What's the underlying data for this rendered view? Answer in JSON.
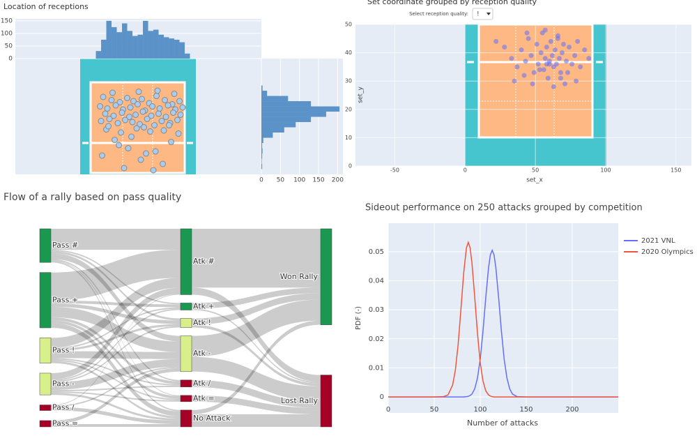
{
  "chart_data": [
    {
      "type": "scatter-hist",
      "title": "Location of receptions",
      "color": "#a9cbee",
      "x": [
        1.2,
        2.0,
        2.8,
        3.5,
        4.1,
        4.9,
        5.6,
        6.3,
        7.1,
        7.8,
        8.5,
        0.9,
        1.6,
        2.4,
        3.1,
        3.8,
        4.5,
        5.2,
        5.9,
        6.6,
        7.4,
        8.1,
        8.8,
        1.4,
        2.2,
        3.0,
        3.7,
        4.3,
        5.0,
        5.8,
        6.5,
        7.2,
        7.9,
        8.6,
        1.0,
        1.8,
        2.6,
        3.3,
        4.0,
        4.7,
        5.4,
        6.1,
        6.8,
        7.6,
        8.3,
        1.5,
        2.9,
        4.4,
        5.7,
        7.0,
        8.4,
        2.3,
        3.6,
        6.2,
        7.7,
        1.1,
        4.8,
        6.9,
        3.2,
        5.3,
        2.1,
        4.6,
        6.4,
        8.0,
        1.7,
        5.1,
        7.5,
        3.9,
        2.7,
        6.0
      ],
      "y": [
        4.4,
        4.1,
        3.9,
        4.3,
        4.0,
        4.2,
        3.8,
        4.5,
        4.1,
        3.7,
        4.0,
        3.5,
        3.3,
        3.6,
        3.2,
        3.4,
        3.7,
        3.1,
        3.5,
        3.3,
        3.6,
        3.2,
        3.4,
        2.8,
        2.6,
        2.9,
        2.5,
        2.7,
        3.0,
        2.6,
        2.8,
        2.5,
        2.9,
        2.7,
        2.1,
        2.3,
        1.9,
        2.2,
        2.0,
        1.8,
        2.3,
        1.7,
        2.1,
        1.9,
        2.2,
        1.3,
        1.0,
        1.4,
        1.1,
        1.2,
        0.9,
        0.3,
        -0.5,
        -0.8,
        0.1,
        -1.2,
        -1.6,
        -2.0,
        -2.4,
        -1.0,
        4.8,
        4.9,
        5.0,
        4.7,
        1.6,
        1.5,
        1.7,
        0.6,
        -0.2,
        -2.6
      ],
      "xlim": [
        -7.2,
        16.33
      ],
      "ylim": [
        -3,
        8.07
      ],
      "top_hist": {
        "color": "#5b93c9",
        "bins": [
          0.5,
          1,
          1.5,
          2,
          2.5,
          3,
          3.5,
          4,
          4.5,
          5,
          5.5,
          6,
          6.5,
          7,
          7.5,
          8,
          8.5,
          9,
          9.5
        ],
        "counts": [
          30,
          75,
          150,
          125,
          105,
          140,
          110,
          90,
          95,
          150,
          110,
          115,
          95,
          85,
          80,
          75,
          65,
          20
        ],
        "ylim": [
          0,
          158
        ],
        "yticks": [
          0,
          50,
          100,
          150
        ]
      },
      "side_hist": {
        "color": "#5b93c9",
        "bins": [
          -2.5,
          -2,
          -1.5,
          -1,
          -0.5,
          0,
          0.5,
          1,
          1.5,
          2,
          2.5,
          3,
          3.5,
          4,
          4.5,
          5,
          5.5
        ],
        "counts": [
          2,
          1,
          2,
          3,
          2,
          5,
          30,
          60,
          90,
          130,
          170,
          205,
          130,
          70,
          15,
          3
        ],
        "xlim": [
          0,
          214
        ],
        "xticks": [
          0,
          50,
          100,
          150,
          200
        ]
      }
    },
    {
      "type": "scatter",
      "title": "Set coordinate grouped by reception quality",
      "x_label": "set_x",
      "y_label": "set_y",
      "dropdown": {
        "label": "Select reception quality:",
        "value": "!"
      },
      "color": "rgba(99,110,250,0.55)",
      "x": [
        22,
        28,
        33,
        37,
        40,
        43,
        45,
        47,
        49,
        51,
        52,
        54,
        55,
        56,
        57,
        58,
        59,
        60,
        61,
        62,
        63,
        64,
        65,
        66,
        67,
        68,
        69,
        70,
        72,
        74,
        76,
        78,
        80,
        82,
        85,
        88,
        35,
        42,
        48,
        53,
        58,
        63,
        68,
        73,
        79,
        44,
        57,
        66,
        71,
        60
      ],
      "y": [
        44,
        42,
        38,
        35,
        41,
        37,
        45,
        39,
        33,
        43,
        36,
        40,
        47,
        34,
        38,
        42,
        31,
        37,
        44,
        39,
        35,
        41,
        36,
        46,
        38,
        33,
        40,
        43,
        37,
        42,
        36,
        39,
        44,
        35,
        41,
        38,
        30,
        32,
        29,
        34,
        36,
        28,
        31,
        33,
        30,
        47,
        48,
        45,
        29,
        36
      ],
      "xlim": [
        -78,
        161
      ],
      "ylim": [
        0,
        50
      ],
      "xticks": [
        -50,
        0,
        50,
        100,
        150
      ],
      "yticks": [
        0,
        10,
        20,
        30,
        40,
        50
      ]
    },
    {
      "type": "sankey",
      "title": "Flow of a rally based on pass quality",
      "link_color": "rgba(0,0,0,0.2)",
      "nodes": [
        {
          "label": "Pass #",
          "color": "#1a9850"
        },
        {
          "label": "Pass +",
          "color": "#1a9850"
        },
        {
          "label": "Pass !",
          "color": "#d9ef8b"
        },
        {
          "label": "Pass -",
          "color": "#d9ef8b"
        },
        {
          "label": "Pass /",
          "color": "#a50026"
        },
        {
          "label": "Pass =",
          "color": "#a50026"
        },
        {
          "label": "Atk #",
          "color": "#1a9850"
        },
        {
          "label": "Atk +",
          "color": "#1a9850"
        },
        {
          "label": "Atk !",
          "color": "#d9ef8b"
        },
        {
          "label": "Atk -",
          "color": "#d9ef8b"
        },
        {
          "label": "Atk /",
          "color": "#a50026"
        },
        {
          "label": "Atk =",
          "color": "#a50026"
        },
        {
          "label": "No Attack",
          "color": "#a50026"
        },
        {
          "label": "Won Rally",
          "color": "#1a9850"
        },
        {
          "label": "Lost Rally",
          "color": "#a50026"
        }
      ],
      "links": [
        {
          "source": 0,
          "target": 6,
          "value": 30
        },
        {
          "source": 0,
          "target": 7,
          "value": 2
        },
        {
          "source": 0,
          "target": 8,
          "value": 3
        },
        {
          "source": 0,
          "target": 9,
          "value": 8
        },
        {
          "source": 0,
          "target": 10,
          "value": 2
        },
        {
          "source": 0,
          "target": 11,
          "value": 1
        },
        {
          "source": 0,
          "target": 12,
          "value": 2
        },
        {
          "source": 1,
          "target": 6,
          "value": 40
        },
        {
          "source": 1,
          "target": 7,
          "value": 4
        },
        {
          "source": 1,
          "target": 8,
          "value": 5
        },
        {
          "source": 1,
          "target": 9,
          "value": 15
        },
        {
          "source": 1,
          "target": 10,
          "value": 4
        },
        {
          "source": 1,
          "target": 11,
          "value": 4
        },
        {
          "source": 1,
          "target": 12,
          "value": 7
        },
        {
          "source": 2,
          "target": 6,
          "value": 14
        },
        {
          "source": 2,
          "target": 7,
          "value": 2
        },
        {
          "source": 2,
          "target": 8,
          "value": 3
        },
        {
          "source": 2,
          "target": 9,
          "value": 10
        },
        {
          "source": 2,
          "target": 10,
          "value": 2
        },
        {
          "source": 2,
          "target": 11,
          "value": 2
        },
        {
          "source": 2,
          "target": 12,
          "value": 3
        },
        {
          "source": 3,
          "target": 6,
          "value": 9
        },
        {
          "source": 3,
          "target": 7,
          "value": 2
        },
        {
          "source": 3,
          "target": 8,
          "value": 2
        },
        {
          "source": 3,
          "target": 9,
          "value": 11
        },
        {
          "source": 3,
          "target": 10,
          "value": 2
        },
        {
          "source": 3,
          "target": 11,
          "value": 2
        },
        {
          "source": 3,
          "target": 12,
          "value": 3
        },
        {
          "source": 4,
          "target": 6,
          "value": 1
        },
        {
          "source": 4,
          "target": 9,
          "value": 2
        },
        {
          "source": 4,
          "target": 12,
          "value": 5
        },
        {
          "source": 5,
          "target": 9,
          "value": 5
        },
        {
          "source": 5,
          "target": 12,
          "value": 4
        },
        {
          "source": 6,
          "target": 13,
          "value": 84
        },
        {
          "source": 6,
          "target": 14,
          "value": 10
        },
        {
          "source": 7,
          "target": 13,
          "value": 8
        },
        {
          "source": 7,
          "target": 14,
          "value": 2
        },
        {
          "source": 8,
          "target": 13,
          "value": 9
        },
        {
          "source": 8,
          "target": 14,
          "value": 4
        },
        {
          "source": 9,
          "target": 13,
          "value": 30
        },
        {
          "source": 9,
          "target": 14,
          "value": 21
        },
        {
          "source": 10,
          "target": 14,
          "value": 10
        },
        {
          "source": 11,
          "target": 14,
          "value": 9
        },
        {
          "source": 12,
          "target": 13,
          "value": 6
        },
        {
          "source": 12,
          "target": 14,
          "value": 18
        }
      ]
    },
    {
      "type": "line",
      "title": "Sideout performance on 250 attacks grouped by competition",
      "x_label": "Number of attacks",
      "y_label": "PDF (-)",
      "x": [
        0,
        20,
        40,
        50,
        60,
        65,
        70,
        73,
        76,
        79,
        82,
        85,
        87,
        89,
        91,
        94,
        97,
        100,
        103,
        106,
        109,
        111,
        113,
        115,
        117,
        120,
        123,
        126,
        129,
        132,
        135,
        140,
        150,
        175,
        200,
        225,
        250
      ],
      "series": [
        {
          "name": "2021 VNL",
          "color": "#636efa",
          "values": [
            0,
            0,
            0,
            0,
            0,
            0,
            0,
            0,
            0,
            0,
            0,
            0.0001,
            0.0002,
            0.0005,
            0.001,
            0.0028,
            0.0065,
            0.013,
            0.0227,
            0.0341,
            0.0444,
            0.0489,
            0.0505,
            0.0489,
            0.0444,
            0.0341,
            0.0227,
            0.013,
            0.0065,
            0.0028,
            0.001,
            0.0001,
            0,
            0,
            0,
            0,
            0
          ]
        },
        {
          "name": "2020 Olympics",
          "color": "#ef553b",
          "values": [
            0,
            0,
            0,
            0,
            0.0001,
            0.0007,
            0.0041,
            0.0093,
            0.0181,
            0.0301,
            0.0426,
            0.0513,
            0.0532,
            0.0513,
            0.0461,
            0.0344,
            0.0219,
            0.0118,
            0.0055,
            0.0021,
            0.0007,
            0.0003,
            0.0001,
            0,
            0,
            0,
            0,
            0,
            0,
            0,
            0,
            0,
            0,
            0,
            0,
            0,
            0
          ]
        }
      ],
      "xlim": [
        0,
        250
      ],
      "ylim": [
        -0.0055,
        0.0598
      ],
      "xticks": [
        0,
        50,
        100,
        150,
        200
      ],
      "yticks": [
        0,
        0.01,
        0.02,
        0.03,
        0.04,
        0.05
      ],
      "grid": true,
      "legend": "right"
    }
  ]
}
